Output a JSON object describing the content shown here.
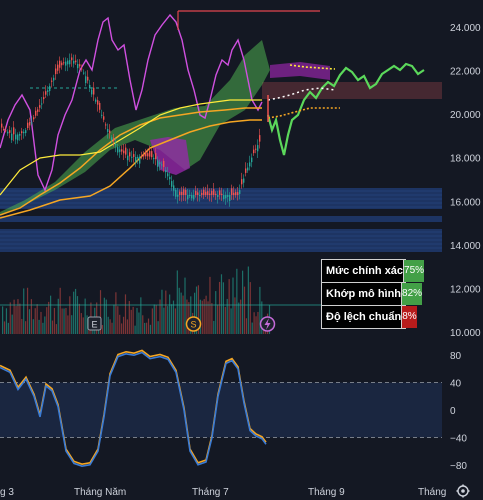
{
  "chart_data": [
    {
      "type": "candlestick",
      "title": "",
      "y_ticks": [
        "24.000",
        "22.000",
        "20.000",
        "18.000",
        "16.000",
        "14.000",
        "12.000",
        "10.000"
      ],
      "ylim": [
        10000,
        25000
      ],
      "x_ticks": [
        "g 3",
        "Tháng Năm",
        "Tháng 7",
        "Tháng 9",
        "Tháng"
      ],
      "overlays": [
        "ichimoku-cloud",
        "forecast-path",
        "price-channel",
        "volume",
        "support-zones"
      ],
      "colors": {
        "up": "#26a69a",
        "down": "#ef5350",
        "cloud_bull": "#4caf50",
        "cloud_bear": "#9c27b0",
        "magenta_line": "#d050e0",
        "forecast": "#5bd85b",
        "band": "#f5a623",
        "signal": "#ffeb3b",
        "zone": "#1f3a6e"
      }
    },
    {
      "type": "line",
      "title": "",
      "y_ticks": [
        "80",
        "40",
        "0",
        "−40",
        "−80"
      ],
      "ylim": [
        -90,
        90
      ],
      "series_colors": [
        "#3a7bd5",
        "#f5a623"
      ]
    }
  ],
  "event_markers": {
    "earnings": "E",
    "split": "S",
    "flash_icon": "lightning-icon"
  },
  "stats": [
    {
      "label": "Mức chính xác",
      "value": "75%",
      "color": "#43a047"
    },
    {
      "label": "Khớp mô hình",
      "value": "82%",
      "color": "#43a047"
    },
    {
      "label": "Độ lệch chuẩn",
      "value": "8%",
      "color": "#b71c1c"
    }
  ],
  "settings_icon": "gear-icon"
}
